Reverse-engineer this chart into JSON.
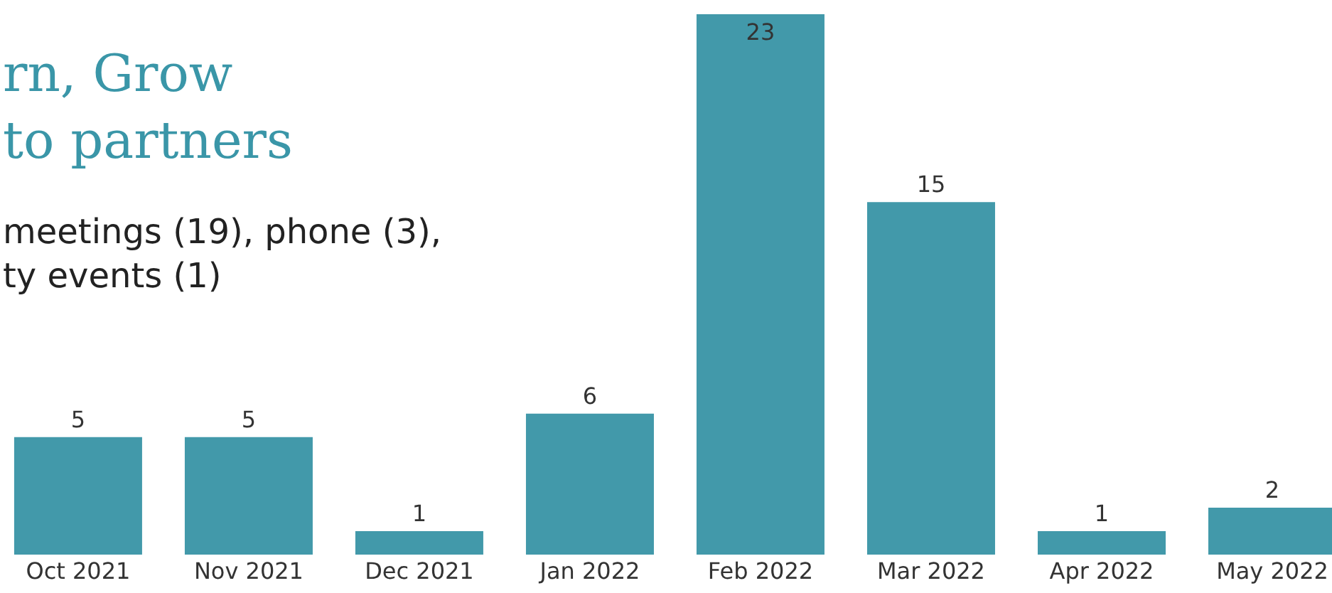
{
  "chart_data": {
    "type": "bar",
    "title": "rn, Grow\nto partners",
    "subtitle": "meetings (19), phone (3),\nty events (1)",
    "categories": [
      "Oct 2021",
      "Nov 2021",
      "Dec 2021",
      "Jan 2022",
      "Feb 2022",
      "Mar 2022",
      "Apr 2022",
      "May 2022"
    ],
    "values": [
      5,
      5,
      1,
      6,
      23,
      15,
      1,
      2
    ],
    "color": "#4299aa",
    "ylim": [
      0,
      23
    ],
    "data_labels": true,
    "grid": false,
    "legend": false
  }
}
